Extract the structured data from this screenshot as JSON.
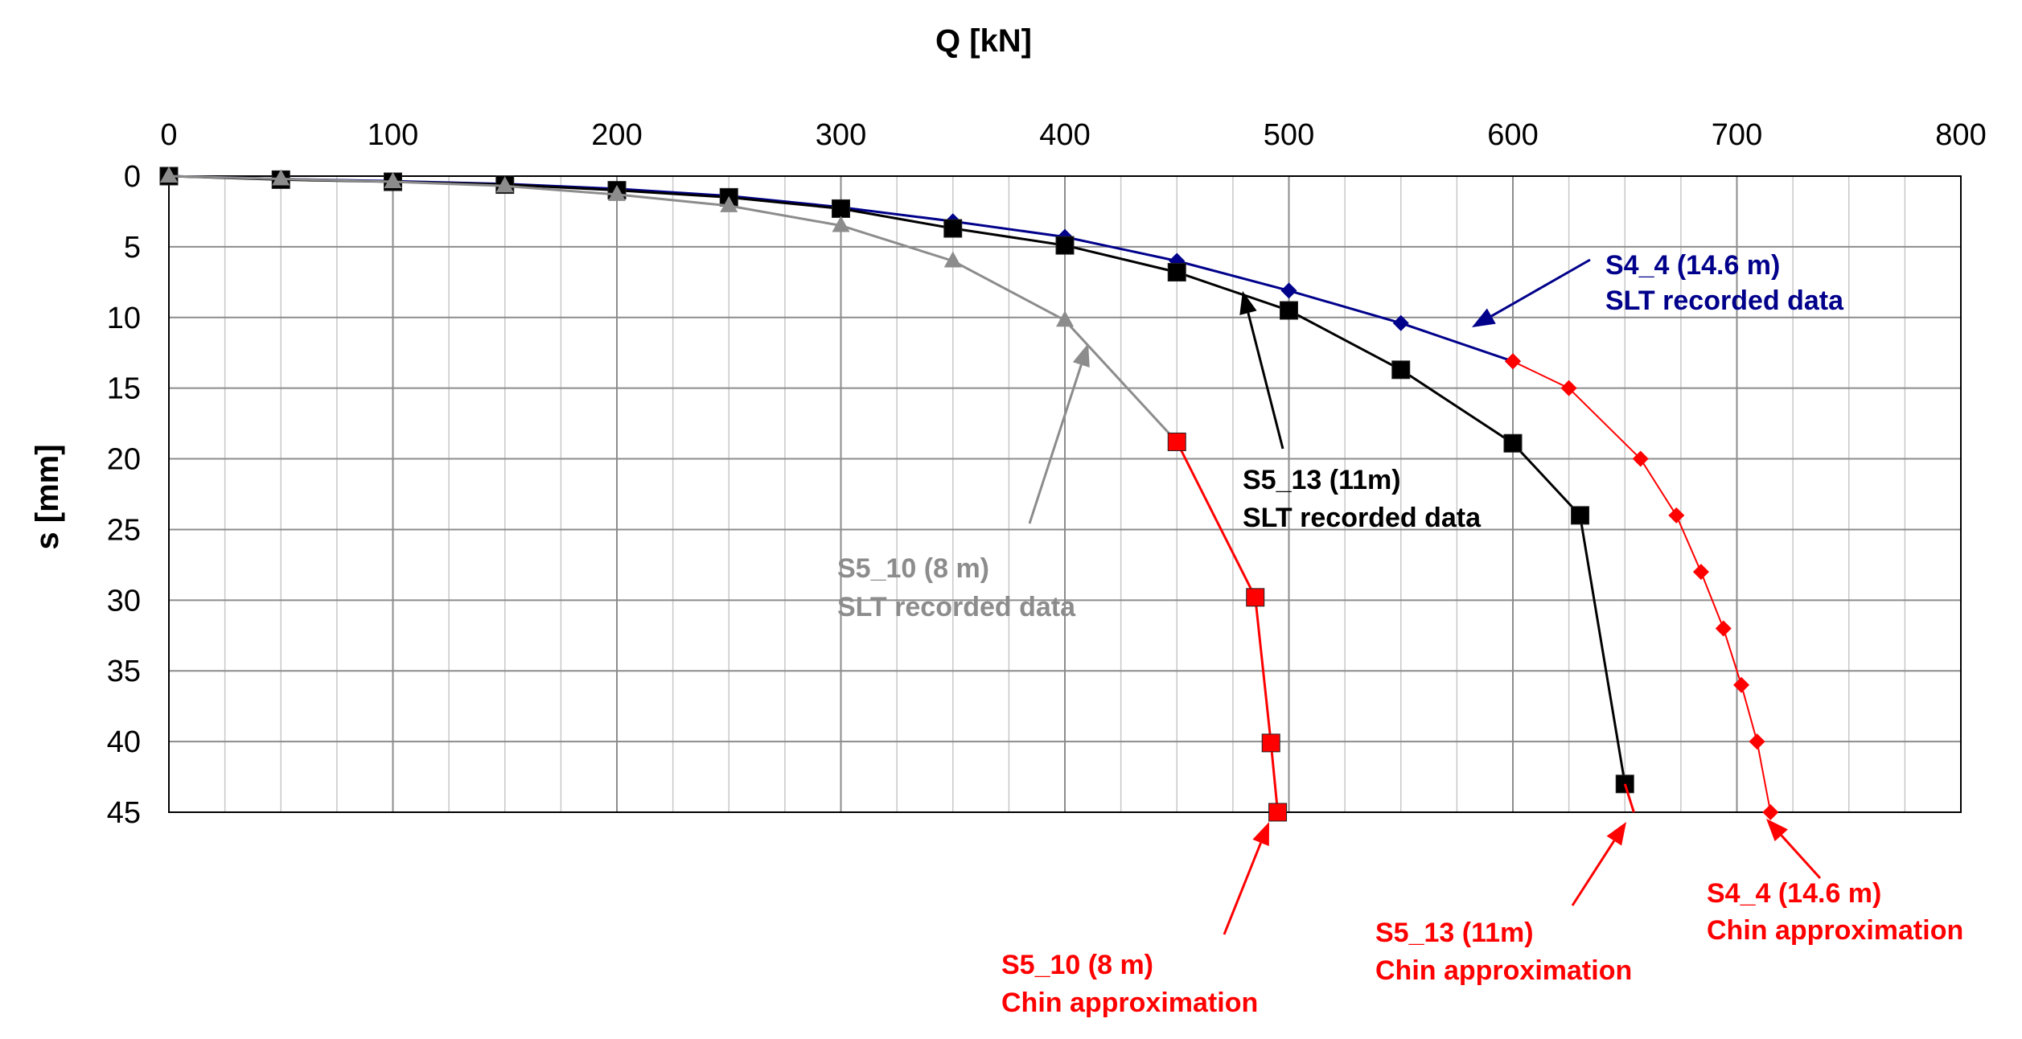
{
  "chart_data": {
    "type": "line",
    "title": "",
    "xlabel": "Q [kN]",
    "ylabel": "s [mm]",
    "xlim": [
      0,
      800
    ],
    "ylim": [
      0,
      45
    ],
    "y_inverted": true,
    "x_axis_position": "top",
    "grid": true,
    "x_ticks": [
      0,
      100,
      200,
      300,
      400,
      500,
      600,
      700,
      800
    ],
    "y_ticks": [
      0,
      5,
      10,
      15,
      20,
      25,
      30,
      35,
      40,
      45
    ],
    "series": [
      {
        "name": "S4_4 SLT recorded data",
        "color": "#00008B",
        "marker": "diamond",
        "points": [
          [
            0,
            0
          ],
          [
            50,
            0.2
          ],
          [
            100,
            0.35
          ],
          [
            150,
            0.55
          ],
          [
            200,
            0.9
          ],
          [
            250,
            1.4
          ],
          [
            300,
            2.2
          ],
          [
            350,
            3.2
          ],
          [
            400,
            4.3
          ],
          [
            450,
            6.0
          ],
          [
            500,
            8.1
          ],
          [
            550,
            10.4
          ],
          [
            600,
            13.1
          ]
        ]
      },
      {
        "name": "S4_4 Chin approximation",
        "color": "#FF0000",
        "marker": "diamond",
        "points": [
          [
            600,
            13.1
          ],
          [
            625,
            15
          ],
          [
            657,
            20
          ],
          [
            673,
            24
          ],
          [
            684,
            28
          ],
          [
            694,
            32
          ],
          [
            702,
            36
          ],
          [
            709,
            40
          ],
          [
            715,
            45
          ]
        ]
      },
      {
        "name": "S5_13 SLT recorded data",
        "color": "#000000",
        "marker": "square",
        "points": [
          [
            0,
            0
          ],
          [
            50,
            0.25
          ],
          [
            100,
            0.4
          ],
          [
            150,
            0.6
          ],
          [
            200,
            1.0
          ],
          [
            250,
            1.5
          ],
          [
            300,
            2.3
          ],
          [
            350,
            3.7
          ],
          [
            400,
            4.9
          ],
          [
            450,
            6.8
          ],
          [
            500,
            9.5
          ],
          [
            550,
            13.7
          ],
          [
            600,
            18.9
          ],
          [
            630,
            24
          ],
          [
            650,
            43
          ]
        ]
      },
      {
        "name": "S5_13 Chin approximation",
        "color": "#FF0000",
        "marker": "none",
        "points": [
          [
            650,
            43
          ],
          [
            654,
            45
          ]
        ]
      },
      {
        "name": "S5_10 SLT recorded data",
        "color": "#8C8C8C",
        "marker": "triangle",
        "points": [
          [
            0,
            0
          ],
          [
            50,
            0.2
          ],
          [
            100,
            0.4
          ],
          [
            150,
            0.7
          ],
          [
            200,
            1.3
          ],
          [
            250,
            2.1
          ],
          [
            300,
            3.5
          ],
          [
            350,
            6.0
          ],
          [
            400,
            10.2
          ],
          [
            450,
            18.8
          ]
        ]
      },
      {
        "name": "S5_10 Chin approximation",
        "color": "#FF0000",
        "marker": "square",
        "points": [
          [
            450,
            18.8
          ],
          [
            485,
            29.8
          ],
          [
            492,
            40.1
          ],
          [
            495,
            45
          ]
        ]
      }
    ],
    "annotations": [
      {
        "line1": "S4_4 (14.6 m)",
        "line2": "SLT recorded data",
        "color": "#00008B"
      },
      {
        "line1": "S5_13 (11m)",
        "line2": "SLT recorded data",
        "color": "#000000"
      },
      {
        "line1": "S5_10 (8 m)",
        "line2": "SLT recorded data",
        "color": "#8C8C8C"
      },
      {
        "line1": "S5_10 (8 m)",
        "line2": "Chin approximation",
        "color": "#FF0000"
      },
      {
        "line1": "S5_13 (11m)",
        "line2": "Chin approximation",
        "color": "#FF0000"
      },
      {
        "line1": "S4_4 (14.6 m)",
        "line2": "Chin approximation",
        "color": "#FF0000"
      }
    ]
  }
}
